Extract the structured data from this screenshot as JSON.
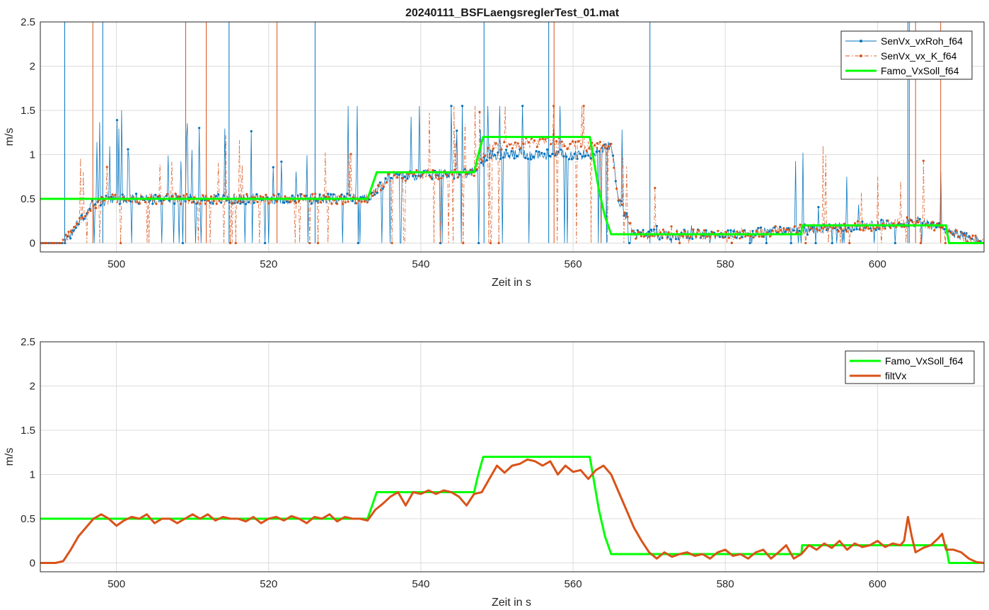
{
  "chart_data": [
    {
      "type": "line",
      "title": "20240111_BSFLaengsreglerTest_01.mat",
      "xlabel": "Zeit in s",
      "ylabel": "m/s",
      "xlim": [
        490,
        614
      ],
      "ylim": [
        -0.1,
        2.5
      ],
      "xticks": [
        "500",
        "520",
        "540",
        "560",
        "580",
        "600"
      ],
      "yticks": [
        "0",
        "0.5",
        "1",
        "1.5",
        "2",
        "2.5"
      ],
      "grid": true,
      "legend_position": "top-right",
      "colors": {
        "blue": "#0072BD",
        "orange": "#D95319",
        "green": "#00FF00"
      },
      "series": [
        {
          "name": "SenVx_vxRoh_f64",
          "color": "#0072BD",
          "style": "solid with dot markers",
          "description_values": "noisy measured speed, baseline follows filtVx with spikes up to ~1.5 and 0",
          "x": [
            490,
            493,
            497,
            500,
            510,
            520,
            533,
            536,
            547,
            549,
            556,
            562,
            565,
            566,
            568,
            580,
            590,
            600,
            605,
            609,
            613,
            614
          ],
          "y": [
            0,
            0,
            0.45,
            0.5,
            0.5,
            0.5,
            0.5,
            0.75,
            0.8,
            1.0,
            1.0,
            1.0,
            1.1,
            0.5,
            0.1,
            0.1,
            0.15,
            0.2,
            0.25,
            0.15,
            0.02,
            0
          ]
        },
        {
          "name": "SenVx_vx_K_f64",
          "color": "#D95319",
          "style": "dash-dot with dot markers",
          "description_values": "noisy speed, similar to raw",
          "x": [
            490,
            493,
            497,
            500,
            510,
            520,
            533,
            536,
            547,
            549,
            556,
            562,
            565,
            566,
            568,
            580,
            590,
            600,
            605,
            609,
            613,
            614
          ],
          "y": [
            0,
            0,
            0.45,
            0.5,
            0.5,
            0.5,
            0.5,
            0.75,
            0.8,
            1.1,
            1.15,
            1.1,
            1.1,
            0.5,
            0.1,
            0.1,
            0.15,
            0.2,
            0.25,
            0.15,
            0.02,
            0
          ]
        },
        {
          "name": "Famo_VxSoll_f64",
          "color": "#00FF00",
          "style": "solid thick",
          "x": [
            490,
            533.0,
            533.6,
            534.2,
            547.0,
            547.4,
            547.8,
            548.2,
            562.2,
            562.6,
            563.0,
            563.4,
            563.8,
            564.2,
            564.6,
            565.0,
            590.0,
            590.1,
            609.0,
            609.4,
            614
          ],
          "y": [
            0.5,
            0.5,
            0.65,
            0.8,
            0.8,
            0.95,
            1.08,
            1.2,
            1.2,
            1.0,
            0.8,
            0.6,
            0.45,
            0.3,
            0.2,
            0.1,
            0.1,
            0.2,
            0.2,
            0.0,
            0.0
          ]
        }
      ]
    },
    {
      "type": "line",
      "title": "",
      "xlabel": "Zeit in s",
      "ylabel": "m/s",
      "xlim": [
        490,
        614
      ],
      "ylim": [
        -0.1,
        2.5
      ],
      "xticks": [
        "500",
        "520",
        "540",
        "560",
        "580",
        "600"
      ],
      "yticks": [
        "0",
        "0.5",
        "1",
        "1.5",
        "2",
        "2.5"
      ],
      "grid": true,
      "legend_position": "top-right",
      "series": [
        {
          "name": "Famo_VxSoll_f64",
          "color": "#00FF00",
          "style": "solid thick",
          "x": [
            490,
            533.0,
            533.6,
            534.2,
            547.0,
            547.4,
            547.8,
            548.2,
            562.2,
            562.6,
            563.0,
            563.4,
            563.8,
            564.2,
            564.6,
            565.0,
            590.0,
            590.1,
            609.0,
            609.4,
            614
          ],
          "y": [
            0.5,
            0.5,
            0.65,
            0.8,
            0.8,
            0.95,
            1.08,
            1.2,
            1.2,
            1.0,
            0.8,
            0.6,
            0.45,
            0.3,
            0.2,
            0.1,
            0.1,
            0.2,
            0.2,
            0.0,
            0.0
          ]
        },
        {
          "name": "filtVx",
          "color": "#D95319",
          "style": "solid thick",
          "x": [
            490,
            492,
            493,
            494,
            495,
            496,
            497,
            498,
            499,
            500,
            501,
            502,
            503,
            504,
            505,
            506,
            507,
            508,
            509,
            510,
            511,
            512,
            513,
            514,
            515,
            516,
            517,
            518,
            519,
            520,
            521,
            522,
            523,
            524,
            525,
            526,
            527,
            528,
            529,
            530,
            531,
            532,
            533,
            534,
            535,
            536,
            537,
            538,
            539,
            540,
            541,
            542,
            543,
            544,
            545,
            546,
            547,
            548,
            549,
            550,
            551,
            552,
            553,
            554,
            555,
            556,
            557,
            558,
            559,
            560,
            561,
            562,
            563,
            564,
            565,
            566,
            567,
            568,
            569,
            570,
            571,
            572,
            573,
            574,
            575,
            576,
            577,
            578,
            579,
            580,
            581,
            582,
            583,
            584,
            585,
            586,
            587,
            588,
            589,
            590,
            591,
            592,
            593,
            594,
            595,
            596,
            597,
            598,
            599,
            600,
            601,
            602,
            603,
            603.5,
            604,
            604.5,
            605,
            606,
            607,
            608,
            608.5,
            609,
            610,
            611,
            612,
            613,
            614
          ],
          "y": [
            0,
            0,
            0.02,
            0.15,
            0.3,
            0.4,
            0.5,
            0.55,
            0.5,
            0.42,
            0.48,
            0.52,
            0.5,
            0.55,
            0.45,
            0.5,
            0.5,
            0.45,
            0.5,
            0.55,
            0.5,
            0.55,
            0.48,
            0.52,
            0.5,
            0.5,
            0.47,
            0.52,
            0.45,
            0.5,
            0.52,
            0.48,
            0.53,
            0.5,
            0.45,
            0.52,
            0.5,
            0.55,
            0.47,
            0.52,
            0.5,
            0.5,
            0.48,
            0.6,
            0.67,
            0.75,
            0.8,
            0.65,
            0.8,
            0.78,
            0.82,
            0.78,
            0.82,
            0.8,
            0.75,
            0.65,
            0.78,
            0.8,
            0.95,
            1.1,
            1.02,
            1.1,
            1.12,
            1.17,
            1.15,
            1.1,
            1.15,
            1.0,
            1.1,
            1.03,
            1.05,
            0.95,
            1.05,
            1.1,
            1.0,
            0.8,
            0.6,
            0.4,
            0.25,
            0.12,
            0.05,
            0.12,
            0.07,
            0.1,
            0.12,
            0.08,
            0.1,
            0.05,
            0.12,
            0.15,
            0.08,
            0.1,
            0.05,
            0.12,
            0.15,
            0.05,
            0.12,
            0.2,
            0.05,
            0.1,
            0.2,
            0.15,
            0.22,
            0.17,
            0.25,
            0.15,
            0.22,
            0.18,
            0.2,
            0.25,
            0.18,
            0.22,
            0.2,
            0.25,
            0.52,
            0.3,
            0.12,
            0.17,
            0.2,
            0.28,
            0.33,
            0.15,
            0.15,
            0.12,
            0.05,
            0.01,
            0
          ]
        }
      ]
    }
  ],
  "legend_labels_top": [
    "SenVx_vxRoh_f64",
    "SenVx_vx_K_f64",
    "Famo_VxSoll_f64"
  ],
  "legend_labels_bottom": [
    "Famo_VxSoll_f64",
    "filtVx"
  ]
}
